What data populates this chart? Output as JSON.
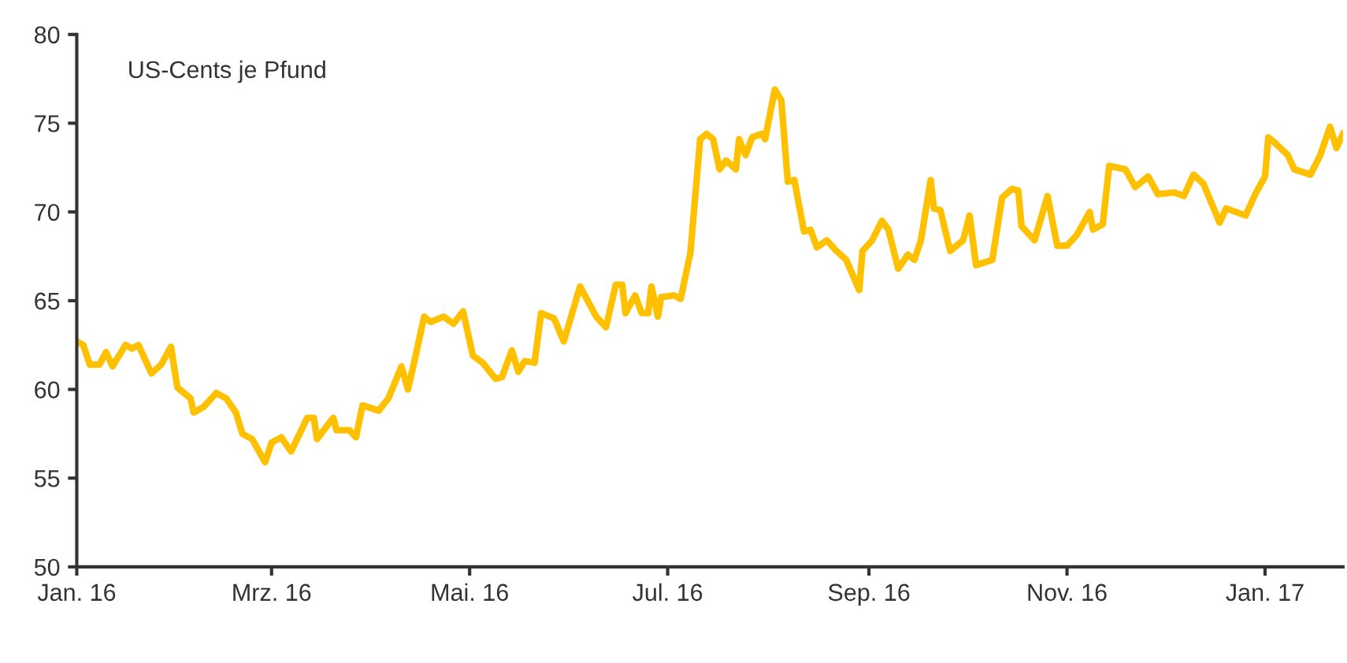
{
  "chart_data": {
    "type": "line",
    "annotations": [
      "US-Cents je Pfund"
    ],
    "x": [
      "2016-01-01",
      "2016-01-03",
      "2016-01-05",
      "2016-01-08",
      "2016-01-10",
      "2016-01-12",
      "2016-01-16",
      "2016-01-18",
      "2016-01-20",
      "2016-01-24",
      "2016-01-27",
      "2016-01-30",
      "2016-02-01",
      "2016-02-05",
      "2016-02-06",
      "2016-02-09",
      "2016-02-13",
      "2016-02-16",
      "2016-02-19",
      "2016-02-21",
      "2016-02-24",
      "2016-02-28",
      "2016-03-01",
      "2016-03-04",
      "2016-03-07",
      "2016-03-12",
      "2016-03-14",
      "2016-03-15",
      "2016-03-20",
      "2016-03-21",
      "2016-03-25",
      "2016-03-27",
      "2016-03-29",
      "2016-04-03",
      "2016-04-06",
      "2016-04-10",
      "2016-04-12",
      "2016-04-14",
      "2016-04-17",
      "2016-04-19",
      "2016-04-23",
      "2016-04-26",
      "2016-04-29",
      "2016-05-02",
      "2016-05-05",
      "2016-05-09",
      "2016-05-11",
      "2016-05-14",
      "2016-05-16",
      "2016-05-18",
      "2016-05-21",
      "2016-05-23",
      "2016-05-27",
      "2016-05-30",
      "2016-06-04",
      "2016-06-09",
      "2016-06-12",
      "2016-06-15",
      "2016-06-17",
      "2016-06-18",
      "2016-06-21",
      "2016-06-23",
      "2016-06-25",
      "2016-06-26",
      "2016-06-28",
      "2016-06-29",
      "2016-07-03",
      "2016-07-05",
      "2016-07-08",
      "2016-07-11",
      "2016-07-13",
      "2016-07-15",
      "2016-07-17",
      "2016-07-19",
      "2016-07-22",
      "2016-07-23",
      "2016-07-25",
      "2016-07-27",
      "2016-07-30",
      "2016-07-31",
      "2016-08-03",
      "2016-08-05",
      "2016-08-07",
      "2016-08-09",
      "2016-08-12",
      "2016-08-14",
      "2016-08-16",
      "2016-08-19",
      "2016-08-22",
      "2016-08-25",
      "2016-08-29",
      "2016-08-30",
      "2016-09-02",
      "2016-09-05",
      "2016-09-07",
      "2016-09-10",
      "2016-09-13",
      "2016-09-15",
      "2016-09-17",
      "2016-09-20",
      "2016-09-21",
      "2016-09-23",
      "2016-09-26",
      "2016-09-30",
      "2016-10-02",
      "2016-10-04",
      "2016-10-09",
      "2016-10-12",
      "2016-10-15",
      "2016-10-17",
      "2016-10-18",
      "2016-10-22",
      "2016-10-26",
      "2016-10-29",
      "2016-11-01",
      "2016-11-04",
      "2016-11-08",
      "2016-11-09",
      "2016-11-12",
      "2016-11-14",
      "2016-11-19",
      "2016-11-22",
      "2016-11-26",
      "2016-11-29",
      "2016-12-04",
      "2016-12-07",
      "2016-12-10",
      "2016-12-13",
      "2016-12-18",
      "2016-12-20",
      "2016-12-26",
      "2016-12-29",
      "2017-01-01",
      "2017-01-02",
      "2017-01-04",
      "2017-01-08",
      "2017-01-10",
      "2017-01-15",
      "2017-01-18",
      "2017-01-21",
      "2017-01-23",
      "2017-01-25"
    ],
    "series": [
      {
        "color": "#ffc000",
        "values": [
          62.7,
          62.5,
          61.4,
          61.4,
          62.1,
          61.3,
          62.5,
          62.3,
          62.5,
          60.9,
          61.4,
          62.4,
          60.1,
          59.5,
          58.7,
          59.0,
          59.8,
          59.5,
          58.7,
          57.5,
          57.2,
          55.9,
          57.0,
          57.3,
          56.5,
          58.4,
          58.4,
          57.2,
          58.4,
          57.7,
          57.7,
          57.3,
          59.1,
          58.8,
          59.5,
          61.3,
          60.0,
          61.6,
          64.1,
          63.8,
          64.1,
          63.7,
          64.4,
          61.9,
          61.5,
          60.6,
          60.7,
          62.2,
          61.0,
          61.6,
          61.5,
          64.3,
          64.0,
          62.7,
          65.8,
          64.1,
          63.5,
          65.9,
          65.9,
          64.3,
          65.3,
          64.3,
          64.3,
          65.8,
          64.1,
          65.2,
          65.3,
          65.1,
          67.7,
          74.1,
          74.4,
          74.1,
          72.4,
          72.9,
          72.4,
          74.1,
          73.2,
          74.2,
          74.4,
          74.1,
          76.9,
          76.3,
          71.7,
          71.8,
          68.9,
          69.0,
          68.0,
          68.4,
          67.8,
          67.3,
          65.6,
          67.8,
          68.4,
          69.5,
          69.0,
          66.8,
          67.6,
          67.3,
          68.4,
          71.8,
          70.2,
          70.1,
          67.8,
          68.4,
          69.8,
          67.0,
          67.3,
          70.8,
          71.3,
          71.2,
          69.2,
          68.4,
          70.9,
          68.1,
          68.1,
          68.7,
          70.0,
          69.0,
          69.3,
          72.6,
          72.4,
          71.4,
          72.0,
          71.0,
          71.1,
          70.9,
          72.1,
          71.6,
          69.4,
          70.2,
          69.8,
          71.0,
          72.0,
          74.2,
          73.9,
          73.2,
          72.4,
          72.1,
          73.2,
          74.8,
          73.6,
          74.4
        ]
      }
    ],
    "xlim": [
      "2016-01-01",
      "2017-01-25"
    ],
    "xticks": [
      {
        "value": "2016-01-01",
        "label": "Jan. 16"
      },
      {
        "value": "2016-03-01",
        "label": "Mrz. 16"
      },
      {
        "value": "2016-05-01",
        "label": "Mai. 16"
      },
      {
        "value": "2016-07-01",
        "label": "Jul. 16"
      },
      {
        "value": "2016-09-01",
        "label": "Sep. 16"
      },
      {
        "value": "2016-11-01",
        "label": "Nov. 16"
      },
      {
        "value": "2017-01-01",
        "label": "Jan. 17"
      }
    ],
    "ylim": [
      50,
      80
    ],
    "yticks": [
      50,
      55,
      60,
      65,
      70,
      75,
      80
    ],
    "grid": false,
    "marker": "none",
    "line_style": "solid"
  }
}
